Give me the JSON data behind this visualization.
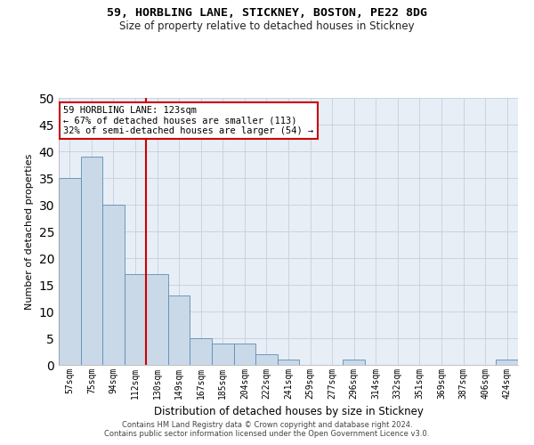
{
  "title1": "59, HORBLING LANE, STICKNEY, BOSTON, PE22 8DG",
  "title2": "Size of property relative to detached houses in Stickney",
  "xlabel": "Distribution of detached houses by size in Stickney",
  "ylabel": "Number of detached properties",
  "categories": [
    "57sqm",
    "75sqm",
    "94sqm",
    "112sqm",
    "130sqm",
    "149sqm",
    "167sqm",
    "185sqm",
    "204sqm",
    "222sqm",
    "241sqm",
    "259sqm",
    "277sqm",
    "296sqm",
    "314sqm",
    "332sqm",
    "351sqm",
    "369sqm",
    "387sqm",
    "406sqm",
    "424sqm"
  ],
  "values": [
    35,
    39,
    30,
    17,
    17,
    13,
    5,
    4,
    4,
    2,
    1,
    0,
    0,
    1,
    0,
    0,
    0,
    0,
    0,
    0,
    1
  ],
  "bar_color": "#c9d9e8",
  "bar_edge_color": "#5b8db8",
  "vline_x_index": 3,
  "vline_color": "#cc0000",
  "annotation_line1": "59 HORBLING LANE: 123sqm",
  "annotation_line2": "← 67% of detached houses are smaller (113)",
  "annotation_line3": "32% of semi-detached houses are larger (54) →",
  "annotation_box_color": "#cc0000",
  "ylim": [
    0,
    50
  ],
  "yticks": [
    0,
    5,
    10,
    15,
    20,
    25,
    30,
    35,
    40,
    45,
    50
  ],
  "grid_color": "#c8d4e3",
  "bg_color": "#e8eef5",
  "footer1": "Contains HM Land Registry data © Crown copyright and database right 2024.",
  "footer2": "Contains public sector information licensed under the Open Government Licence v3.0."
}
